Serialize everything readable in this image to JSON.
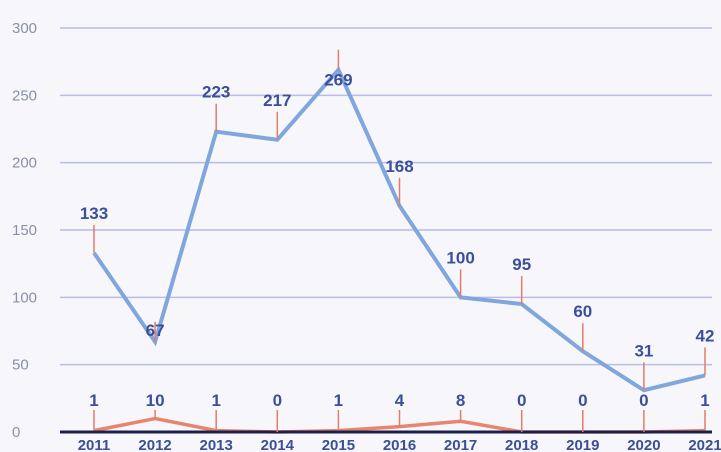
{
  "chart_data": {
    "type": "line",
    "x": [
      "2011",
      "2012",
      "2013",
      "2014",
      "2015",
      "2016",
      "2017",
      "2018",
      "2019",
      "2020",
      "2021"
    ],
    "series": [
      {
        "values": [
          133,
          67,
          223,
          217,
          269,
          168,
          100,
          95,
          60,
          31,
          42
        ],
        "color": "#7fa6dd"
      },
      {
        "values": [
          1,
          10,
          1,
          0,
          1,
          4,
          8,
          0,
          0,
          0,
          1
        ],
        "color": "#e8856f"
      }
    ],
    "yticks": [
      "0",
      "50",
      "100",
      "150",
      "200",
      "250",
      "300"
    ],
    "ylim": [
      0,
      300
    ],
    "grid": true,
    "title": "",
    "xlabel": "",
    "ylabel": ""
  },
  "colors": {
    "grid": "#b9bce6",
    "axis": "#1c1f4a",
    "label_leader": "#e07c6a"
  }
}
